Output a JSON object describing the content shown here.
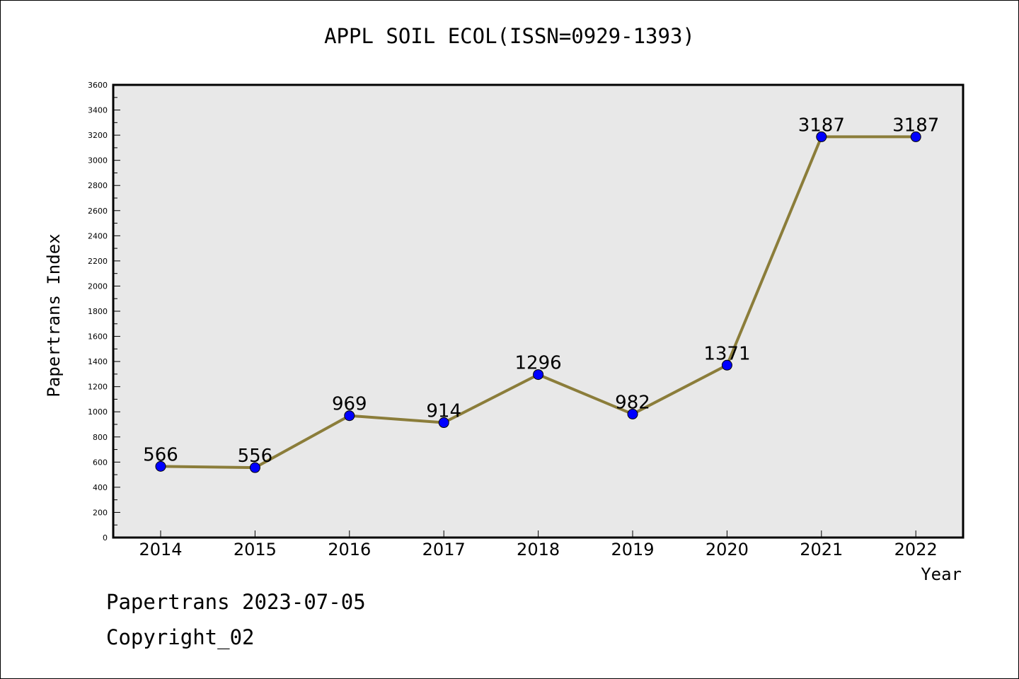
{
  "page": {
    "footer_date": "Papertrans 2023-07-05",
    "footer_copyright": "Copyright_02"
  },
  "chart_data": {
    "type": "line",
    "title": "APPL SOIL ECOL(ISSN=0929-1393)",
    "xlabel": "Year",
    "ylabel": "Papertrans Index",
    "categories": [
      "2014",
      "2015",
      "2016",
      "2017",
      "2018",
      "2019",
      "2020",
      "2021",
      "2022"
    ],
    "series": [
      {
        "name": "Papertrans Index",
        "values": [
          566,
          556,
          969,
          914,
          1296,
          982,
          1371,
          3187,
          3187
        ]
      }
    ],
    "ylim": [
      0,
      3600
    ],
    "y_major_step": 200,
    "y_minor_step": 100,
    "grid": false,
    "colors": {
      "line": "#8B7D3A",
      "marker": "#0000FF",
      "plot_bg": "#E8E8E8",
      "axis": "#000000"
    }
  }
}
